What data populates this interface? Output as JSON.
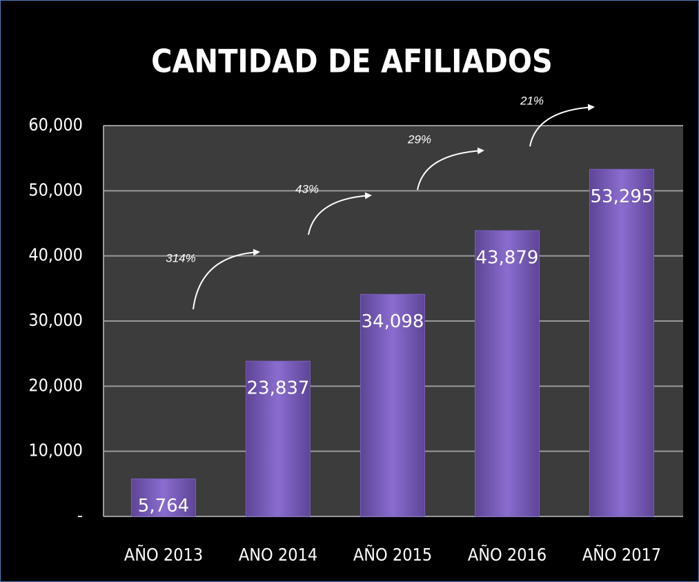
{
  "chart_data": {
    "type": "bar",
    "title": "CANTIDAD DE AFILIADOS",
    "categories": [
      "AÑO 2013",
      "ANO 2014",
      "AÑO 2015",
      "AÑO 2016",
      "AÑO 2017"
    ],
    "values": [
      5764,
      23837,
      34098,
      43879,
      53295
    ],
    "value_labels": [
      "5,764",
      "23,837",
      "34,098",
      "43,879",
      "53,295"
    ],
    "color": "#7c5fbf",
    "ylim": [
      0,
      60000
    ],
    "yticks": [
      {
        "value": 0,
        "label": "-"
      },
      {
        "value": 10000,
        "label": "10,000"
      },
      {
        "value": 20000,
        "label": "20,000"
      },
      {
        "value": 30000,
        "label": "30,000"
      },
      {
        "value": 40000,
        "label": "40,000"
      },
      {
        "value": 50000,
        "label": "50,000"
      },
      {
        "value": 60000,
        "label": "60,000"
      }
    ],
    "grid": true,
    "annotations": [
      "314%",
      "43%",
      "29%",
      "21%"
    ]
  }
}
